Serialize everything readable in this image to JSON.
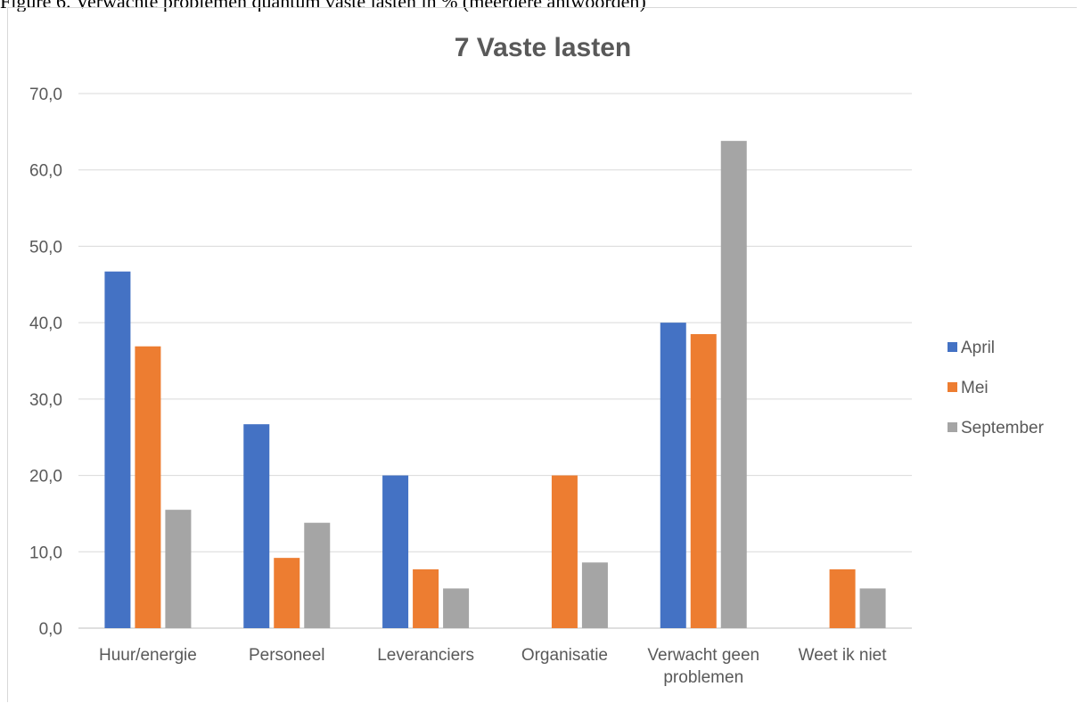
{
  "caption": "Figure 6. Verwachte problemen quantum vaste lasten in % (meerdere antwoorden)",
  "chart_data": {
    "type": "bar",
    "title": "7 Vaste lasten",
    "xlabel": "",
    "ylabel": "",
    "categories": [
      [
        "Huur/energie"
      ],
      [
        "Personeel"
      ],
      [
        "Leveranciers"
      ],
      [
        "Organisatie"
      ],
      [
        "Verwacht geen",
        "problemen"
      ],
      [
        "Weet ik niet"
      ]
    ],
    "series": [
      {
        "name": "April",
        "color": "#4472c4",
        "values": [
          46.7,
          26.7,
          20.0,
          null,
          40.0,
          null
        ]
      },
      {
        "name": "Mei",
        "color": "#ed7d31",
        "values": [
          36.9,
          9.2,
          7.7,
          20.0,
          38.5,
          7.7
        ]
      },
      {
        "name": "September",
        "color": "#a5a5a5",
        "values": [
          15.5,
          13.8,
          5.2,
          8.6,
          63.8,
          5.2
        ]
      }
    ],
    "ylim": [
      0,
      70
    ],
    "yticks": [
      "0,0",
      "10,0",
      "20,0",
      "30,0",
      "40,0",
      "50,0",
      "60,0",
      "70,0"
    ],
    "grid": true,
    "legend_position": "right"
  }
}
